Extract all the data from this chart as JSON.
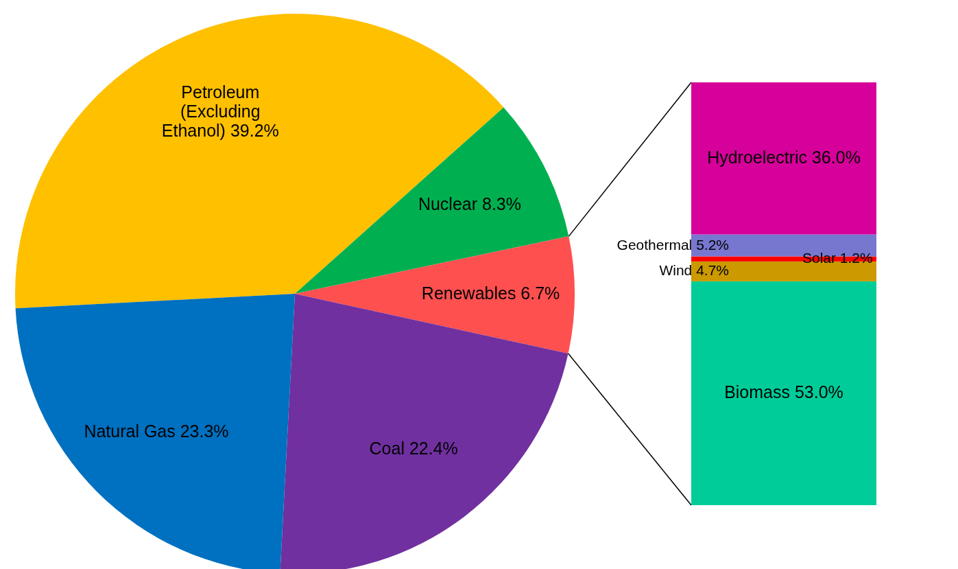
{
  "chart_data": [
    {
      "type": "pie",
      "categories": [
        "Petroleum (Excluding Ethanol)",
        "Nuclear",
        "Renewables",
        "Coal",
        "Natural Gas"
      ],
      "values": [
        39.2,
        8.3,
        6.7,
        22.4,
        23.3
      ],
      "colors": [
        "#ffc000",
        "#00b050",
        "#ff5050",
        "#7030a0",
        "#0070c0"
      ],
      "value_labels": [
        "39.2%",
        "8.3%",
        "6.7%",
        "22.4%",
        "23.3%"
      ]
    },
    {
      "type": "bar",
      "stacked": true,
      "categories": [
        null
      ],
      "series": [
        {
          "name": "Biomass",
          "color": "#00cc99",
          "values": [
            53.0
          ],
          "value_labels": [
            "53.0%"
          ]
        },
        {
          "name": "Wind",
          "color": "#cc9900",
          "values": [
            4.7
          ],
          "value_labels": [
            "4.7%"
          ]
        },
        {
          "name": "Solar",
          "color": "#ff0000",
          "values": [
            1.2
          ],
          "value_labels": [
            "1.2%"
          ]
        },
        {
          "name": "Geothermal",
          "color": "#7777d0",
          "values": [
            5.2
          ],
          "value_labels": [
            "5.2%"
          ]
        },
        {
          "name": "Hydroelectric",
          "color": "#d6009a",
          "values": [
            36.0
          ],
          "value_labels": [
            "36.0%"
          ]
        }
      ]
    }
  ]
}
